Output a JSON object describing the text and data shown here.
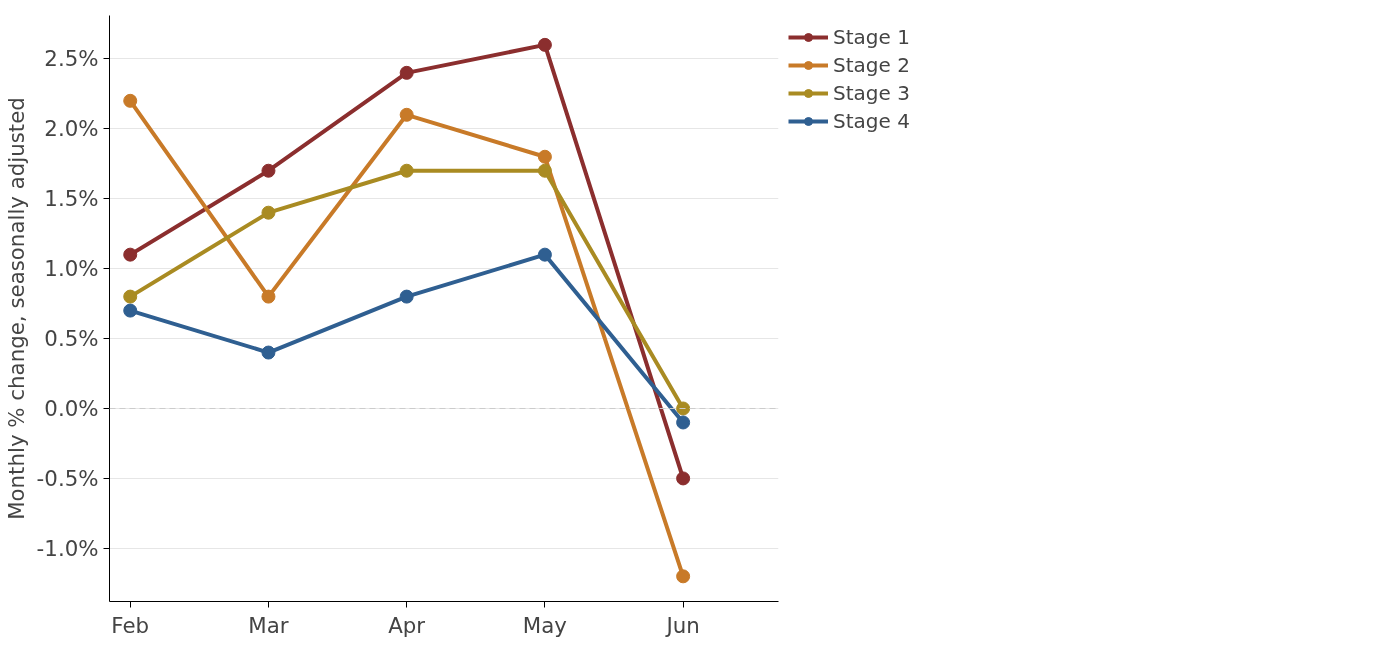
{
  "chart_data": {
    "type": "line",
    "ylabel": "Monthly % change, seasonally adjusted",
    "categories": [
      "Feb",
      "Mar",
      "Apr",
      "May",
      "Jun"
    ],
    "series": [
      {
        "name": "Stage 1",
        "color": "#8b2e2e",
        "values": [
          1.1,
          1.7,
          2.4,
          2.6,
          -0.5
        ]
      },
      {
        "name": "Stage 2",
        "color": "#c87a28",
        "values": [
          2.2,
          0.8,
          2.1,
          1.8,
          -1.2
        ]
      },
      {
        "name": "Stage 3",
        "color": "#a98b22",
        "values": [
          0.8,
          1.4,
          1.7,
          1.7,
          0.0
        ]
      },
      {
        "name": "Stage 4",
        "color": "#2f5f91",
        "values": [
          0.7,
          0.4,
          0.8,
          1.1,
          -0.1
        ]
      }
    ],
    "ylim": [
      -1.38,
      2.81
    ],
    "yticks": [
      {
        "value": -1.0,
        "label": "-1.0%"
      },
      {
        "value": -0.5,
        "label": "-0.5%"
      },
      {
        "value": 0.0,
        "label": "0.0%"
      },
      {
        "value": 0.5,
        "label": "0.5%"
      },
      {
        "value": 1.0,
        "label": "1.0%"
      },
      {
        "value": 1.5,
        "label": "1.5%"
      },
      {
        "value": 2.0,
        "label": "2.0%"
      },
      {
        "value": 2.5,
        "label": "2.5%"
      }
    ],
    "ref_lines": [
      {
        "axis": "y",
        "value": 0,
        "color": "#cccccc",
        "line_style": "dashed"
      }
    ],
    "grid": "y",
    "legend": "top right",
    "marker": "circle",
    "line_style": "solid"
  }
}
